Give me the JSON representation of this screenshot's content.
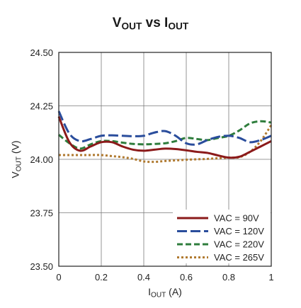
{
  "chart_data": {
    "type": "line",
    "title": {
      "main_v": "V",
      "sub_v": "OUT",
      "mid": " vs ",
      "main_i": "I",
      "sub_i": "OUT"
    },
    "ylabel": {
      "main": "V",
      "sub": "OUT",
      "rest": " (V)"
    },
    "xlabel": {
      "main": "I",
      "sub": "OUT",
      "rest": " (A)"
    },
    "xlim": [
      0,
      1
    ],
    "ylim": [
      23.5,
      24.5
    ],
    "x_ticks": [
      0,
      0.2,
      0.4,
      0.6,
      0.8,
      1
    ],
    "x_tick_labels": [
      "0",
      "0.2",
      "0.4",
      "0.6",
      "0.8",
      "1"
    ],
    "y_ticks": [
      23.5,
      23.75,
      24.0,
      24.25,
      24.5
    ],
    "y_tick_labels": [
      "23.50",
      "23.75",
      "24.00",
      "24.25",
      "24.50"
    ],
    "grid": true,
    "legend_position": "bottom-right",
    "series": [
      {
        "name": "VAC = 90V",
        "color": "#8b1a1a",
        "dash": "solid",
        "points": [
          [
            0,
            24.2
          ],
          [
            0.05,
            24.08
          ],
          [
            0.1,
            24.04
          ],
          [
            0.15,
            24.06
          ],
          [
            0.2,
            24.08
          ],
          [
            0.25,
            24.08
          ],
          [
            0.3,
            24.06
          ],
          [
            0.35,
            24.045
          ],
          [
            0.4,
            24.04
          ],
          [
            0.45,
            24.045
          ],
          [
            0.5,
            24.05
          ],
          [
            0.55,
            24.048
          ],
          [
            0.6,
            24.042
          ],
          [
            0.65,
            24.035
          ],
          [
            0.7,
            24.03
          ],
          [
            0.75,
            24.018
          ],
          [
            0.8,
            24.008
          ],
          [
            0.85,
            24.012
          ],
          [
            0.9,
            24.035
          ],
          [
            0.95,
            24.06
          ],
          [
            1,
            24.085
          ]
        ]
      },
      {
        "name": "VAC = 120V",
        "color": "#2a4d9c",
        "dash": "long",
        "points": [
          [
            0,
            24.225
          ],
          [
            0.05,
            24.12
          ],
          [
            0.1,
            24.085
          ],
          [
            0.15,
            24.095
          ],
          [
            0.2,
            24.11
          ],
          [
            0.25,
            24.112
          ],
          [
            0.3,
            24.11
          ],
          [
            0.35,
            24.108
          ],
          [
            0.4,
            24.11
          ],
          [
            0.45,
            24.125
          ],
          [
            0.5,
            24.132
          ],
          [
            0.55,
            24.11
          ],
          [
            0.6,
            24.075
          ],
          [
            0.65,
            24.07
          ],
          [
            0.7,
            24.09
          ],
          [
            0.75,
            24.105
          ],
          [
            0.8,
            24.11
          ],
          [
            0.85,
            24.1
          ],
          [
            0.9,
            24.08
          ],
          [
            0.95,
            24.09
          ],
          [
            1,
            24.11
          ]
        ]
      },
      {
        "name": "VAC = 220V",
        "color": "#2e7d3c",
        "dash": "medium",
        "points": [
          [
            0,
            24.115
          ],
          [
            0.05,
            24.075
          ],
          [
            0.1,
            24.05
          ],
          [
            0.15,
            24.07
          ],
          [
            0.2,
            24.085
          ],
          [
            0.25,
            24.085
          ],
          [
            0.3,
            24.078
          ],
          [
            0.35,
            24.072
          ],
          [
            0.4,
            24.07
          ],
          [
            0.45,
            24.072
          ],
          [
            0.5,
            24.075
          ],
          [
            0.55,
            24.085
          ],
          [
            0.6,
            24.1
          ],
          [
            0.65,
            24.095
          ],
          [
            0.7,
            24.09
          ],
          [
            0.75,
            24.1
          ],
          [
            0.8,
            24.11
          ],
          [
            0.85,
            24.135
          ],
          [
            0.9,
            24.168
          ],
          [
            0.95,
            24.178
          ],
          [
            1,
            24.172
          ]
        ]
      },
      {
        "name": "VAC = 265V",
        "color": "#b07a30",
        "dash": "dotted",
        "points": [
          [
            0,
            24.02
          ],
          [
            0.05,
            24.02
          ],
          [
            0.1,
            24.02
          ],
          [
            0.15,
            24.02
          ],
          [
            0.2,
            24.02
          ],
          [
            0.25,
            24.015
          ],
          [
            0.3,
            24.01
          ],
          [
            0.35,
            24.002
          ],
          [
            0.4,
            23.99
          ],
          [
            0.45,
            23.988
          ],
          [
            0.5,
            23.992
          ],
          [
            0.55,
            23.995
          ],
          [
            0.6,
            23.998
          ],
          [
            0.65,
            24.0
          ],
          [
            0.7,
            24.002
          ],
          [
            0.75,
            24.005
          ],
          [
            0.8,
            24.008
          ],
          [
            0.85,
            24.01
          ],
          [
            0.9,
            24.035
          ],
          [
            0.95,
            24.085
          ],
          [
            1,
            24.16
          ]
        ]
      }
    ]
  }
}
